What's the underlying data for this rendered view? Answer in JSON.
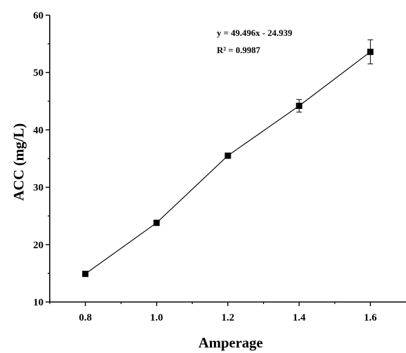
{
  "chart_data": {
    "type": "line",
    "title": "",
    "xlabel": "Amperage",
    "ylabel": "ACC (mg/L)",
    "xlim": [
      0.7,
      1.7
    ],
    "ylim": [
      10,
      60
    ],
    "x_ticks": [
      0.8,
      1.0,
      1.2,
      1.4,
      1.6
    ],
    "x_tick_labels": [
      "0.8",
      "1.0",
      "1.2",
      "1.4",
      "1.6"
    ],
    "y_ticks": [
      10,
      20,
      30,
      40,
      50,
      60
    ],
    "y_tick_labels": [
      "10",
      "20",
      "30",
      "40",
      "50",
      "60"
    ],
    "grid": false,
    "series": [
      {
        "x": [
          0.8,
          1.0,
          1.2,
          1.4,
          1.6
        ],
        "y": [
          14.9,
          23.8,
          35.5,
          44.2,
          53.6
        ],
        "error": [
          0,
          0,
          0,
          1.1,
          2.1
        ],
        "marker": "square",
        "color": "#000000"
      }
    ],
    "annotations": {
      "equation": "y = 49.496x - 24.939",
      "r_squared": "R² = 0.9987"
    }
  }
}
